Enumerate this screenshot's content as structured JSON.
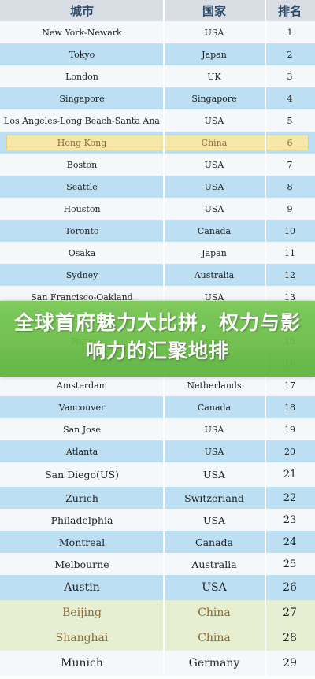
{
  "header": {
    "col_city": "城市",
    "col_country": "国家",
    "col_rank": "排名"
  },
  "rows": [
    {
      "city": "New York-Newark",
      "country": "USA",
      "rank": "1"
    },
    {
      "city": "Tokyo",
      "country": "Japan",
      "rank": "2"
    },
    {
      "city": "London",
      "country": "UK",
      "rank": "3"
    },
    {
      "city": "Singapore",
      "country": "Singapore",
      "rank": "4"
    },
    {
      "city": "Los Angeles-Long Beach-Santa Ana",
      "country": "USA",
      "rank": "5"
    },
    {
      "city": "Hong Kong",
      "country": "China",
      "rank": "6"
    },
    {
      "city": "Boston",
      "country": "USA",
      "rank": "7"
    },
    {
      "city": "Seattle",
      "country": "USA",
      "rank": "8"
    },
    {
      "city": "Houston",
      "country": "USA",
      "rank": "9"
    },
    {
      "city": "Toronto",
      "country": "Canada",
      "rank": "10"
    },
    {
      "city": "Osaka",
      "country": "Japan",
      "rank": "11"
    },
    {
      "city": "Sydney",
      "country": "Australia",
      "rank": "12"
    },
    {
      "city": "San Francisco-Oakland",
      "country": "USA",
      "rank": "13"
    },
    {
      "city": "",
      "country": "",
      "rank": "14"
    },
    {
      "city": "Paris",
      "country": "France",
      "rank": "15"
    },
    {
      "city": "",
      "country": "",
      "rank": "16"
    },
    {
      "city": "Amsterdam",
      "country": "Netherlands",
      "rank": "17"
    },
    {
      "city": "Vancouver",
      "country": "Canada",
      "rank": "18"
    },
    {
      "city": "San Jose",
      "country": "USA",
      "rank": "19"
    },
    {
      "city": "Atlanta",
      "country": "USA",
      "rank": "20"
    },
    {
      "city": "San Diego(US)",
      "country": "USA",
      "rank": "21"
    },
    {
      "city": "Zurich",
      "country": "Switzerland",
      "rank": "22"
    },
    {
      "city": "Philadelphia",
      "country": "USA",
      "rank": "23"
    },
    {
      "city": "Montreal",
      "country": "Canada",
      "rank": "24"
    },
    {
      "city": "Melbourne",
      "country": "Australia",
      "rank": "25"
    },
    {
      "city": "Austin",
      "country": "USA",
      "rank": "26"
    },
    {
      "city": "Beijing",
      "country": "China",
      "rank": "27"
    },
    {
      "city": "Shanghai",
      "country": "China",
      "rank": "28"
    },
    {
      "city": "Munich",
      "country": "Germany",
      "rank": "29"
    }
  ],
  "banner": {
    "title": "全球首府魅力大比拼，权力与影响力的汇聚地排"
  }
}
